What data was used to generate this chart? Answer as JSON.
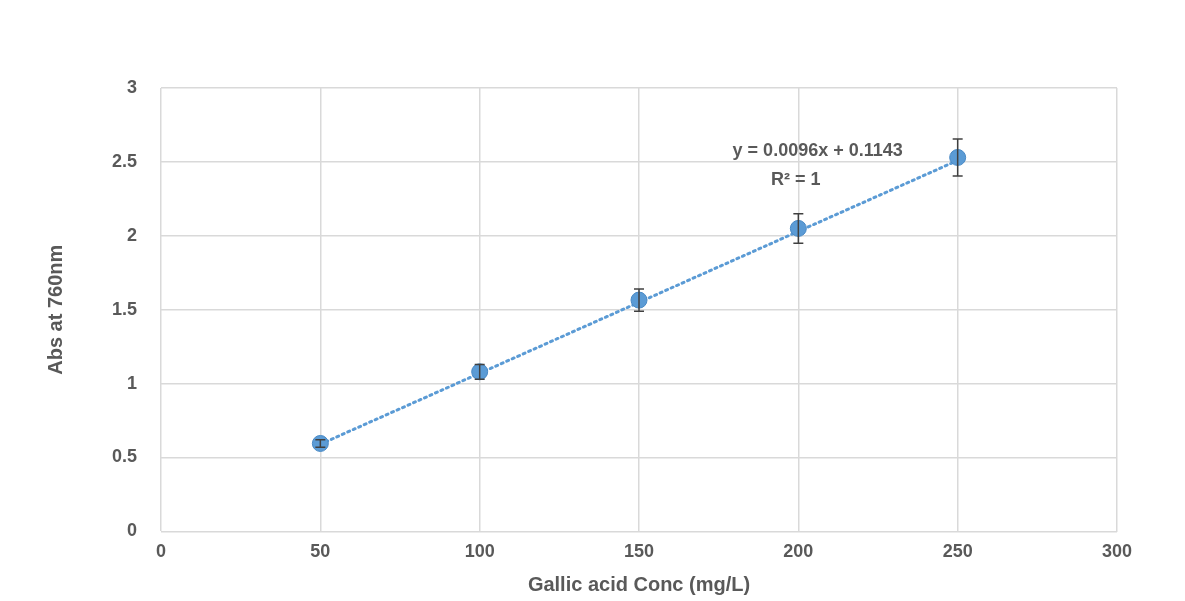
{
  "chart_data": {
    "type": "scatter",
    "xlabel": "Gallic acid Conc (mg/L)",
    "ylabel": "Abs at 760nm",
    "x": [
      50,
      100,
      150,
      200,
      250
    ],
    "series": [
      {
        "color": "#5b9bd5",
        "marker": "circle",
        "values": [
          0.595,
          1.08,
          1.565,
          2.05,
          2.53
        ],
        "errors": [
          0.025,
          0.05,
          0.075,
          0.1,
          0.125
        ]
      },
      {
        "type": "line",
        "color": "#5b9bd5",
        "x": [
          50,
          250
        ],
        "values": [
          0.59,
          2.51
        ],
        "line_style": "dotted"
      }
    ],
    "annotations": [
      "y = 0.0096x + 0.1143",
      "R² = 1"
    ],
    "xlim": [
      0,
      300
    ],
    "xticks": [
      0,
      50,
      100,
      150,
      200,
      250,
      300
    ],
    "ylim": [
      0,
      3
    ],
    "yticks": [
      0,
      0.5,
      1,
      1.5,
      2,
      2.5,
      3
    ],
    "grid": true,
    "legend": false
  }
}
